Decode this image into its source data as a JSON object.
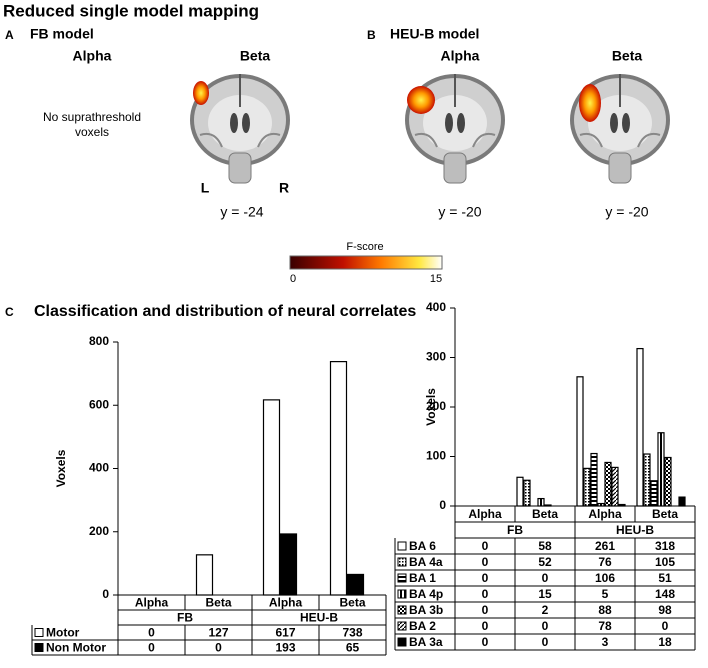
{
  "title": "Reduced single model mapping",
  "panels": [
    {
      "letter": "A",
      "title": "FB model",
      "images": [
        {
          "label": "Alpha",
          "note": [
            "No suprathreshold",
            "voxels"
          ]
        },
        {
          "label": "Beta",
          "coord": "y = -24",
          "left": "L",
          "right": "R"
        }
      ]
    },
    {
      "letter": "B",
      "title": "HEU-B model",
      "images": [
        {
          "label": "Alpha",
          "coord": "y = -20"
        },
        {
          "label": "Beta",
          "coord": "y = -20"
        }
      ]
    }
  ],
  "colorbar": {
    "title": "F-score",
    "ticks": [
      0,
      15
    ]
  },
  "section_c": {
    "letter": "C",
    "title": "Classification and distribution of neural correlates"
  },
  "chart_data": [
    {
      "type": "bar",
      "y_label": "Voxels",
      "ylim": [
        0,
        800
      ],
      "yticks": [
        0,
        200,
        400,
        600,
        800
      ],
      "categories": [
        "Alpha",
        "Beta",
        "Alpha",
        "Beta"
      ],
      "group_labels": [
        "FB",
        "HEU-B"
      ],
      "series": [
        {
          "name": "Motor",
          "fill": "white",
          "values": [
            0,
            127,
            617,
            738
          ]
        },
        {
          "name": "Non Motor",
          "fill": "black",
          "values": [
            0,
            0,
            193,
            65
          ]
        }
      ]
    },
    {
      "type": "bar",
      "y_label": "Voxels",
      "ylim": [
        0,
        400
      ],
      "yticks": [
        0,
        100,
        200,
        300,
        400
      ],
      "categories": [
        "Alpha",
        "Beta",
        "Alpha",
        "Beta"
      ],
      "group_labels": [
        "FB",
        "HEU-B"
      ],
      "series": [
        {
          "name": "BA 6",
          "fill": "white",
          "values": [
            0,
            58,
            261,
            318
          ]
        },
        {
          "name": "BA 4a",
          "fill": "dots",
          "values": [
            0,
            52,
            76,
            105
          ]
        },
        {
          "name": "BA 1",
          "fill": "hlines",
          "values": [
            0,
            0,
            106,
            51
          ]
        },
        {
          "name": "BA 4p",
          "fill": "vlines",
          "values": [
            0,
            15,
            5,
            148
          ]
        },
        {
          "name": "BA 3b",
          "fill": "checker",
          "values": [
            0,
            2,
            88,
            98
          ]
        },
        {
          "name": "BA 2",
          "fill": "diag",
          "values": [
            0,
            0,
            78,
            0
          ]
        },
        {
          "name": "BA 3a",
          "fill": "black",
          "values": [
            0,
            0,
            3,
            18
          ]
        }
      ]
    }
  ]
}
